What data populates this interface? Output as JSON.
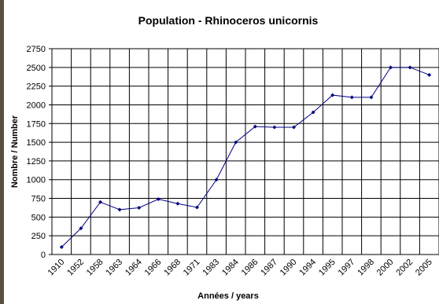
{
  "chart_data": {
    "type": "line",
    "title": "Population - Rhinoceros unicornis",
    "x_label": "Années / years",
    "y_label": "Nombre / Number",
    "categories": [
      "1910",
      "1952",
      "1958",
      "1963",
      "1964",
      "1966",
      "1968",
      "1971",
      "1983",
      "1984",
      "1986",
      "1987",
      "1990",
      "1994",
      "1995",
      "1997",
      "1998",
      "2000",
      "2002",
      "2005"
    ],
    "series": [
      {
        "name": "Rhinoceros unicornis",
        "color": "#000080",
        "values": [
          100,
          350,
          700,
          600,
          625,
          740,
          680,
          630,
          1000,
          1500,
          1710,
          1700,
          1700,
          1900,
          2130,
          2100,
          2100,
          2500,
          2500,
          2400
        ]
      }
    ],
    "ylim": [
      0,
      2750
    ],
    "yticks": [
      0,
      250,
      500,
      750,
      1000,
      1250,
      1500,
      1750,
      2000,
      2250,
      2500,
      2750
    ],
    "grid": true
  }
}
